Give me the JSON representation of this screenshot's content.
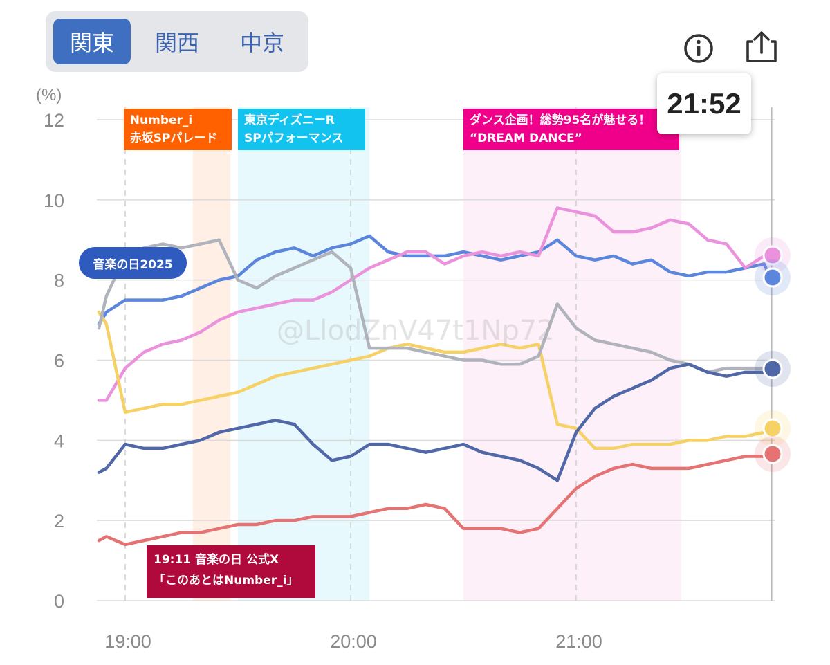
{
  "region_tabs": {
    "items": [
      {
        "label": "関東",
        "active": true
      },
      {
        "label": "関西",
        "active": false
      },
      {
        "label": "中京",
        "active": false
      }
    ]
  },
  "toolbar": {
    "info_icon": "info-icon",
    "share_icon": "share-icon"
  },
  "current_time": "21:52",
  "watermark": "@LlodZnV47t1Np72",
  "colors": {
    "grid": "#dcdcdc",
    "orange_band": "#ff6000",
    "cyan_band": "#12c3f0",
    "pink_band": "#f0008a",
    "x_annotation": "#b00a3c",
    "program_pill": "#2f5bbf"
  },
  "bands": [
    {
      "lines": [
        "Number_i",
        "赤坂SPパレード"
      ],
      "start": "19:18",
      "end": "19:28",
      "color": "#ff6000"
    },
    {
      "lines": [
        "東京ディズニーR",
        "SPパフォーマンス"
      ],
      "start": "19:30",
      "end": "20:05",
      "color": "#12c3f0"
    },
    {
      "lines": [
        "ダンス企画！総勢95名が魅せる！",
        "“DREAM DANCE”"
      ],
      "start": "20:30",
      "end": "21:28",
      "color": "#f0008a"
    }
  ],
  "program_label": "音楽の日2025",
  "x_annotation": {
    "lines": [
      "19:11 音楽の日 公式X",
      "「このあとはNumber_i」"
    ],
    "time": "19:11"
  },
  "chart_data": {
    "type": "line",
    "ylabel": "(%)",
    "ylim": [
      0,
      12
    ],
    "yticks": [
      0,
      2,
      4,
      6,
      8,
      10,
      12
    ],
    "xlim": [
      "18:53",
      "21:52"
    ],
    "xticks": [
      "19:00",
      "20:00",
      "21:00"
    ],
    "grid": true,
    "legend": "none",
    "x": [
      "18:53",
      "18:55",
      "19:00",
      "19:05",
      "19:10",
      "19:15",
      "19:20",
      "19:25",
      "19:30",
      "19:35",
      "19:40",
      "19:45",
      "19:50",
      "19:55",
      "20:00",
      "20:05",
      "20:10",
      "20:15",
      "20:20",
      "20:25",
      "20:30",
      "20:35",
      "20:40",
      "20:45",
      "20:50",
      "20:55",
      "21:00",
      "21:05",
      "21:10",
      "21:15",
      "21:20",
      "21:25",
      "21:30",
      "21:35",
      "21:40",
      "21:45",
      "21:50",
      "21:52"
    ],
    "series": [
      {
        "color": "#5b86dc",
        "values": [
          6.9,
          7.2,
          7.5,
          7.5,
          7.5,
          7.6,
          7.8,
          8.0,
          8.1,
          8.5,
          8.7,
          8.8,
          8.6,
          8.8,
          8.9,
          9.1,
          8.7,
          8.6,
          8.6,
          8.6,
          8.7,
          8.6,
          8.5,
          8.6,
          8.7,
          9.0,
          8.6,
          8.5,
          8.6,
          8.4,
          8.5,
          8.2,
          8.1,
          8.2,
          8.2,
          8.3,
          8.4,
          8.0
        ]
      },
      {
        "color": "#ea92dc",
        "values": [
          5.0,
          5.0,
          5.8,
          6.2,
          6.4,
          6.5,
          6.7,
          7.0,
          7.2,
          7.3,
          7.4,
          7.5,
          7.5,
          7.7,
          8.0,
          8.3,
          8.5,
          8.7,
          8.7,
          8.4,
          8.6,
          8.7,
          8.6,
          8.7,
          8.6,
          9.8,
          9.7,
          9.6,
          9.2,
          9.2,
          9.3,
          9.5,
          9.4,
          9.0,
          8.9,
          8.3,
          8.6,
          8.4
        ]
      },
      {
        "color": "#f5d166",
        "values": [
          7.2,
          6.9,
          4.7,
          4.8,
          4.9,
          4.9,
          5.0,
          5.1,
          5.2,
          5.4,
          5.6,
          5.7,
          5.8,
          5.9,
          6.0,
          6.1,
          6.3,
          6.4,
          6.3,
          6.2,
          6.2,
          6.3,
          6.4,
          6.3,
          6.4,
          4.4,
          4.3,
          3.8,
          3.8,
          3.9,
          3.9,
          3.9,
          4.0,
          4.0,
          4.1,
          4.1,
          4.2,
          4.2
        ]
      },
      {
        "color": "#b0b3bc",
        "values": [
          6.8,
          7.6,
          8.6,
          8.8,
          8.9,
          8.8,
          8.9,
          9.0,
          8.0,
          7.8,
          8.1,
          8.3,
          8.5,
          8.7,
          8.3,
          6.3,
          6.3,
          6.3,
          6.2,
          6.1,
          6.0,
          6.0,
          5.9,
          5.9,
          6.1,
          7.4,
          6.8,
          6.5,
          6.4,
          6.3,
          6.2,
          6.0,
          5.9,
          5.7,
          5.8,
          5.8,
          5.8,
          5.8
        ]
      },
      {
        "color": "#5068a8",
        "values": [
          3.2,
          3.3,
          3.9,
          3.8,
          3.8,
          3.9,
          4.0,
          4.2,
          4.3,
          4.4,
          4.5,
          4.4,
          3.9,
          3.5,
          3.6,
          3.9,
          3.9,
          3.8,
          3.7,
          3.8,
          3.9,
          3.7,
          3.6,
          3.5,
          3.3,
          3.0,
          4.2,
          4.8,
          5.1,
          5.3,
          5.5,
          5.8,
          5.9,
          5.7,
          5.6,
          5.7,
          5.7,
          5.7
        ]
      },
      {
        "color": "#e57373",
        "values": [
          1.5,
          1.6,
          1.4,
          1.5,
          1.6,
          1.7,
          1.7,
          1.8,
          1.9,
          1.9,
          2.0,
          2.0,
          2.1,
          2.1,
          2.1,
          2.2,
          2.3,
          2.3,
          2.4,
          2.3,
          1.8,
          1.8,
          1.8,
          1.7,
          1.8,
          2.3,
          2.8,
          3.1,
          3.3,
          3.4,
          3.3,
          3.3,
          3.3,
          3.4,
          3.5,
          3.6,
          3.6,
          3.5
        ]
      }
    ],
    "end_markers": [
      8.4,
      7.9,
      5.6,
      4.2,
      3.5
    ]
  }
}
